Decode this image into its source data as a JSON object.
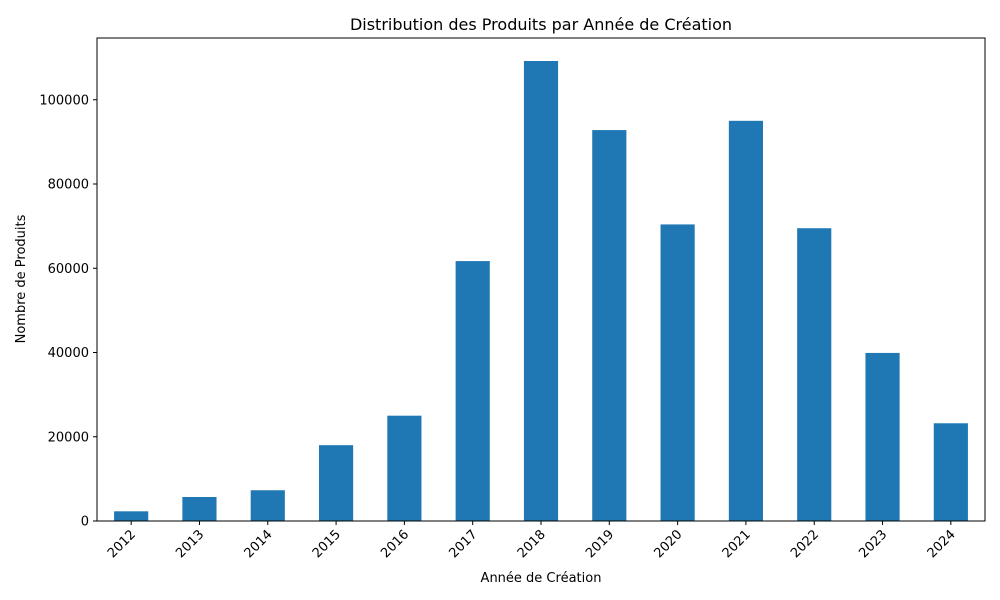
{
  "chart_data": {
    "type": "bar",
    "title": "Distribution des Produits par Année de Création",
    "xlabel": "Année de Création",
    "ylabel": "Nombre de Produits",
    "categories": [
      "2012",
      "2013",
      "2014",
      "2015",
      "2016",
      "2017",
      "2018",
      "2019",
      "2020",
      "2021",
      "2022",
      "2023",
      "2024"
    ],
    "values": [
      2300,
      5700,
      7300,
      18000,
      25000,
      61700,
      109200,
      92800,
      70400,
      95000,
      69500,
      39900,
      23200
    ],
    "ylim": [
      0,
      114660
    ],
    "yticks": [
      0,
      20000,
      40000,
      60000,
      80000,
      100000
    ],
    "grid": false,
    "legend": "none",
    "bar_color": "#1f77b4"
  }
}
